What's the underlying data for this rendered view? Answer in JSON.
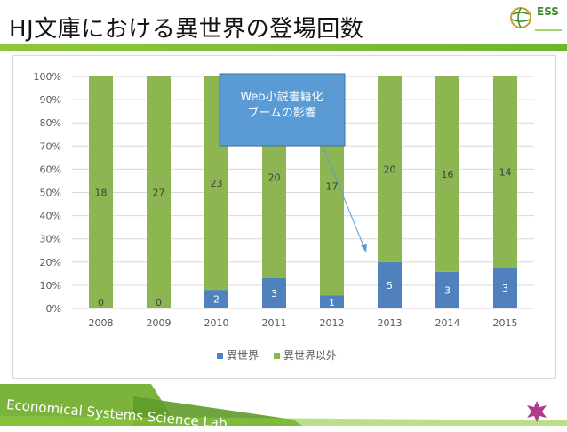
{
  "slide": {
    "title": "HJ文庫における異世界の登場回数",
    "logo_text": "ESS",
    "footer": "Economical Systems Science Lab."
  },
  "colors": {
    "series_isekai": "#4f81bd",
    "series_other": "#8db653",
    "callout": "#5b9bd5",
    "accent": "#8cc83c",
    "star": "#b03c8c"
  },
  "callout": {
    "line1": "Web小説書籍化",
    "line2": "ブームの影響"
  },
  "chart_data": {
    "type": "bar",
    "stacked": "percent",
    "categories": [
      "2008",
      "2009",
      "2010",
      "2011",
      "2012",
      "2013",
      "2014",
      "2015"
    ],
    "series": [
      {
        "name": "異世界",
        "values": [
          0,
          0,
          2,
          3,
          1,
          5,
          3,
          3
        ]
      },
      {
        "name": "異世界以外",
        "values": [
          18,
          27,
          23,
          20,
          17,
          20,
          16,
          14
        ]
      }
    ],
    "y_ticks": [
      "0%",
      "10%",
      "20%",
      "30%",
      "40%",
      "50%",
      "60%",
      "70%",
      "80%",
      "90%",
      "100%"
    ],
    "ylim": [
      0,
      100
    ],
    "legend_position": "bottom",
    "grid": true
  }
}
